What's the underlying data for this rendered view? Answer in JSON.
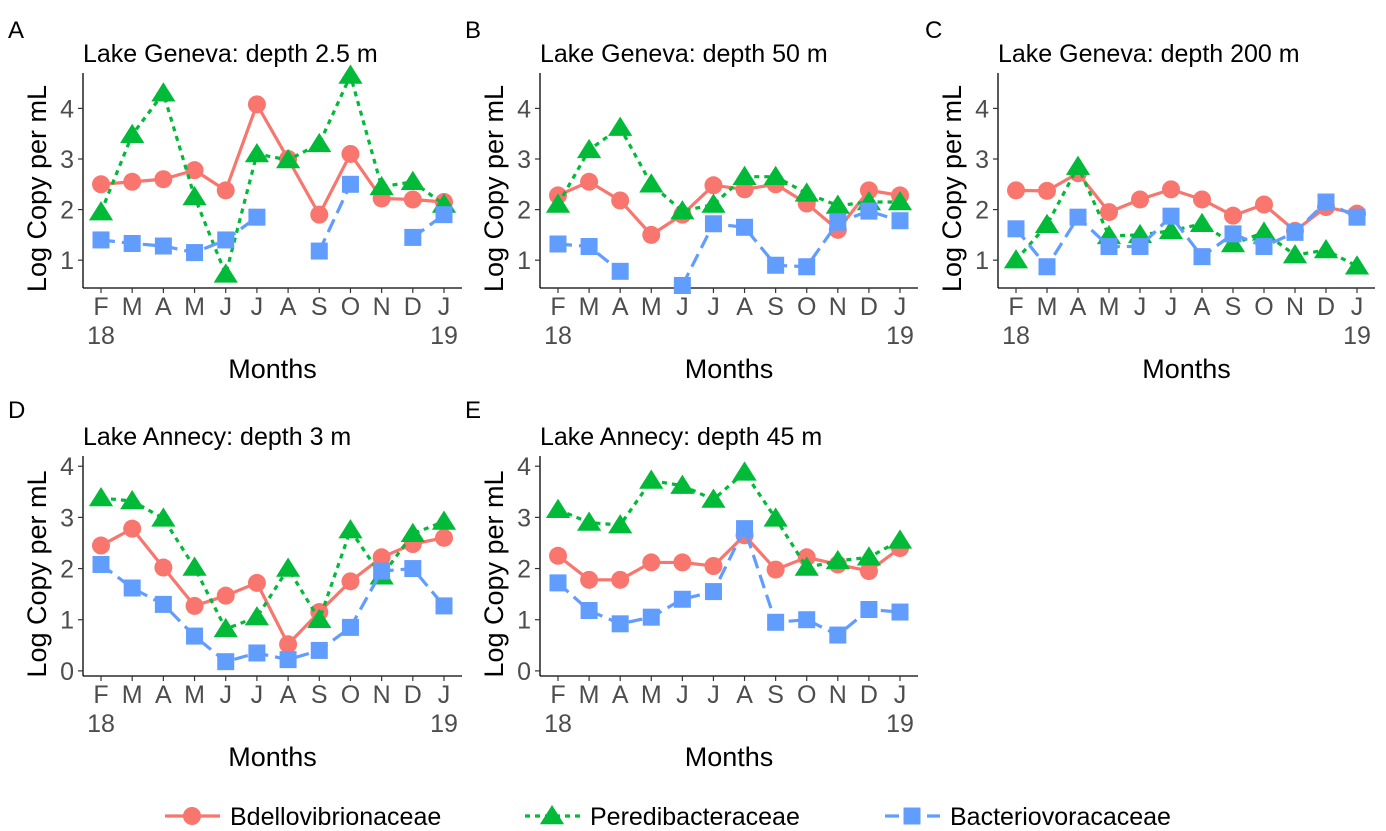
{
  "chart_data": [
    {
      "type": "line",
      "panel_label": "A",
      "title": "Lake Geneva: depth 2.5 m",
      "xlabel": "Months",
      "ylabel": "Log Copy per mL",
      "x_ticks": [
        "F",
        "M",
        "A",
        "M",
        "J",
        "J",
        "A",
        "S",
        "O",
        "N",
        "D",
        "J"
      ],
      "year_labels": [
        "18",
        "19"
      ],
      "y_ticks": [
        "1",
        "2",
        "3",
        "4"
      ],
      "ylim": [
        0.45,
        4.7
      ],
      "series": [
        {
          "name": "Bdellovibrionaceae",
          "values": [
            2.5,
            2.55,
            2.6,
            2.78,
            2.38,
            4.08,
            3.0,
            1.9,
            3.1,
            2.22,
            2.2,
            2.15
          ]
        },
        {
          "name": "Peredibacteraceae",
          "values": [
            1.95,
            3.48,
            4.3,
            2.25,
            0.72,
            3.1,
            2.98,
            3.3,
            4.65,
            2.45,
            2.55,
            2.1
          ]
        },
        {
          "name": "Bacteriovoracaceae",
          "values": [
            1.4,
            1.33,
            1.28,
            1.15,
            1.4,
            1.85,
            null,
            1.18,
            2.5,
            null,
            1.45,
            1.9
          ]
        }
      ]
    },
    {
      "type": "line",
      "panel_label": "B",
      "title": "Lake Geneva: depth 50 m",
      "xlabel": "Months",
      "ylabel": "Log Copy per mL",
      "x_ticks": [
        "F",
        "M",
        "A",
        "M",
        "J",
        "J",
        "A",
        "S",
        "O",
        "N",
        "D",
        "J"
      ],
      "year_labels": [
        "18",
        "19"
      ],
      "y_ticks": [
        "1",
        "2",
        "3",
        "4"
      ],
      "ylim": [
        0.45,
        4.7
      ],
      "series": [
        {
          "name": "Bdellovibrionaceae",
          "values": [
            2.28,
            2.55,
            2.18,
            1.5,
            1.9,
            2.48,
            2.4,
            2.5,
            2.12,
            1.6,
            2.38,
            2.28
          ]
        },
        {
          "name": "Peredibacteraceae",
          "values": [
            2.1,
            3.18,
            3.62,
            2.5,
            1.97,
            2.1,
            2.65,
            2.65,
            2.32,
            2.08,
            2.15,
            2.15
          ]
        },
        {
          "name": "Bacteriovoracaceae",
          "values": [
            1.32,
            1.27,
            0.78,
            null,
            0.5,
            1.72,
            1.65,
            0.9,
            0.87,
            1.75,
            1.97,
            1.78
          ]
        }
      ]
    },
    {
      "type": "line",
      "panel_label": "C",
      "title": "Lake Geneva: depth 200 m",
      "xlabel": "Months",
      "ylabel": "Log Copy per mL",
      "x_ticks": [
        "F",
        "M",
        "A",
        "M",
        "J",
        "J",
        "A",
        "S",
        "O",
        "N",
        "D",
        "J"
      ],
      "year_labels": [
        "18",
        "19"
      ],
      "y_ticks": [
        "1",
        "2",
        "3",
        "4"
      ],
      "ylim": [
        0.45,
        4.7
      ],
      "series": [
        {
          "name": "Bdellovibrionaceae",
          "values": [
            2.38,
            2.37,
            2.72,
            1.95,
            2.2,
            2.4,
            2.2,
            1.88,
            2.1,
            1.58,
            2.05,
            1.92
          ]
        },
        {
          "name": "Peredibacteraceae",
          "values": [
            1.0,
            1.7,
            2.85,
            1.48,
            1.5,
            1.58,
            1.72,
            1.32,
            1.55,
            1.1,
            1.2,
            0.88
          ]
        },
        {
          "name": "Bacteriovoracaceae",
          "values": [
            1.62,
            0.87,
            1.85,
            1.27,
            1.27,
            1.87,
            1.07,
            1.52,
            1.27,
            1.55,
            2.15,
            1.85
          ]
        }
      ]
    },
    {
      "type": "line",
      "panel_label": "D",
      "title": "Lake Annecy: depth 3 m",
      "xlabel": "Months",
      "ylabel": "Log Copy per mL",
      "x_ticks": [
        "F",
        "M",
        "A",
        "M",
        "J",
        "J",
        "A",
        "S",
        "O",
        "N",
        "D",
        "J"
      ],
      "year_labels": [
        "18",
        "19"
      ],
      "y_ticks": [
        "0",
        "1",
        "2",
        "3",
        "4"
      ],
      "ylim": [
        -0.1,
        4.2
      ],
      "series": [
        {
          "name": "Bdellovibrionaceae",
          "values": [
            2.45,
            2.78,
            2.02,
            1.27,
            1.47,
            1.72,
            0.52,
            1.15,
            1.75,
            2.22,
            2.48,
            2.6
          ]
        },
        {
          "name": "Peredibacteraceae",
          "values": [
            3.38,
            3.32,
            2.98,
            2.02,
            0.82,
            1.05,
            2.0,
            1.0,
            2.75,
            1.85,
            2.68,
            2.92
          ]
        },
        {
          "name": "Bacteriovoracaceae",
          "values": [
            2.08,
            1.62,
            1.3,
            0.68,
            0.18,
            0.35,
            0.22,
            0.4,
            0.85,
            1.95,
            2.0,
            1.27
          ]
        }
      ]
    },
    {
      "type": "line",
      "panel_label": "E",
      "title": "Lake Annecy: depth 45 m",
      "xlabel": "Months",
      "ylabel": "Log Copy per mL",
      "x_ticks": [
        "F",
        "M",
        "A",
        "M",
        "J",
        "J",
        "A",
        "S",
        "O",
        "N",
        "D",
        "J"
      ],
      "year_labels": [
        "18",
        "19"
      ],
      "y_ticks": [
        "0",
        "1",
        "2",
        "3",
        "4"
      ],
      "ylim": [
        -0.1,
        4.2
      ],
      "series": [
        {
          "name": "Bdellovibrionaceae",
          "values": [
            2.25,
            1.78,
            1.78,
            2.12,
            2.12,
            2.05,
            2.65,
            1.98,
            2.22,
            2.08,
            1.95,
            2.4
          ]
        },
        {
          "name": "Peredibacteraceae",
          "values": [
            3.15,
            2.9,
            2.85,
            3.72,
            3.62,
            3.35,
            3.88,
            2.98,
            2.02,
            2.15,
            2.22,
            2.55
          ]
        },
        {
          "name": "Bacteriovoracaceae",
          "values": [
            1.72,
            1.18,
            0.92,
            1.05,
            1.4,
            1.55,
            2.78,
            0.95,
            1.0,
            0.7,
            1.2,
            1.15
          ]
        }
      ]
    }
  ],
  "legend": {
    "placement": "bottom",
    "items": [
      {
        "name": "Bdellovibrionaceae",
        "color": "#F8766D",
        "marker": "circle",
        "dash": "solid"
      },
      {
        "name": "Peredibacteraceae",
        "color": "#00BA38",
        "marker": "triangle",
        "dash": "dotted"
      },
      {
        "name": "Bacteriovoracaceae",
        "color": "#619CFF",
        "marker": "square",
        "dash": "dashed"
      }
    ]
  },
  "colors": {
    "Bdellovibrionaceae": "#F8766D",
    "Peredibacteraceae": "#00BA38",
    "Bacteriovoracaceae": "#619CFF"
  }
}
